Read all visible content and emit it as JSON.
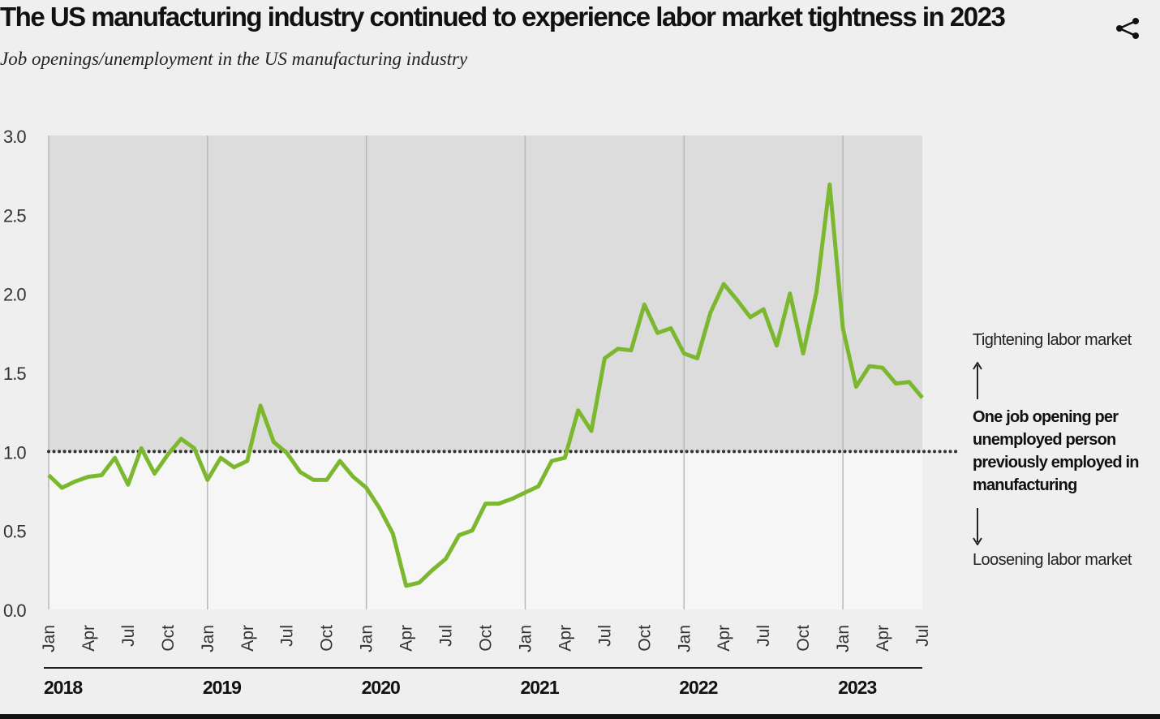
{
  "header": {
    "title": "The US manufacturing industry continued to experience labor market tightness in 2023",
    "subtitle": "Job openings/unemployment in the US manufacturing industry",
    "share_icon": "share-icon"
  },
  "annotations": {
    "top": "Tightening labor market",
    "middle": "One job opening per unemployed person previously employed in manufacturing",
    "bottom": "Loosening labor market"
  },
  "colors": {
    "line": "#7cb82f",
    "upper": "#dcdcdc",
    "lower": "#f6f6f6",
    "background": "#efefef"
  },
  "chart_data": {
    "type": "line",
    "title": "The US manufacturing industry continued to experience labor market tightness in 2023",
    "ylabel": "",
    "xlabel": "",
    "ylim": [
      0,
      3
    ],
    "yticks": [
      "0.0",
      "0.5",
      "1.0",
      "1.5",
      "2.0",
      "2.5",
      "3.0"
    ],
    "reference_line": 1.0,
    "month_ticks": [
      "Jan",
      "Apr",
      "Jul",
      "Oct"
    ],
    "years": [
      "2018",
      "2019",
      "2020",
      "2021",
      "2022",
      "2023"
    ],
    "start": "2018-01",
    "end": "2023-07",
    "series": [
      {
        "name": "Job openings/unemployment",
        "values": [
          0.85,
          0.77,
          0.81,
          0.84,
          0.85,
          0.96,
          0.79,
          1.02,
          0.86,
          0.98,
          1.08,
          1.02,
          0.82,
          0.96,
          0.9,
          0.94,
          1.29,
          1.06,
          0.99,
          0.87,
          0.82,
          0.82,
          0.94,
          0.84,
          0.77,
          0.64,
          0.48,
          0.15,
          0.17,
          0.25,
          0.32,
          0.47,
          0.5,
          0.67,
          0.67,
          0.7,
          0.74,
          0.78,
          0.94,
          0.96,
          1.26,
          1.13,
          1.59,
          1.65,
          1.64,
          1.93,
          1.75,
          1.78,
          1.62,
          1.59,
          1.88,
          2.06,
          1.96,
          1.85,
          1.9,
          1.67,
          2.0,
          1.62,
          2.01,
          2.69,
          1.78,
          1.41,
          1.54,
          1.53,
          1.43,
          1.44,
          1.34
        ]
      }
    ]
  }
}
